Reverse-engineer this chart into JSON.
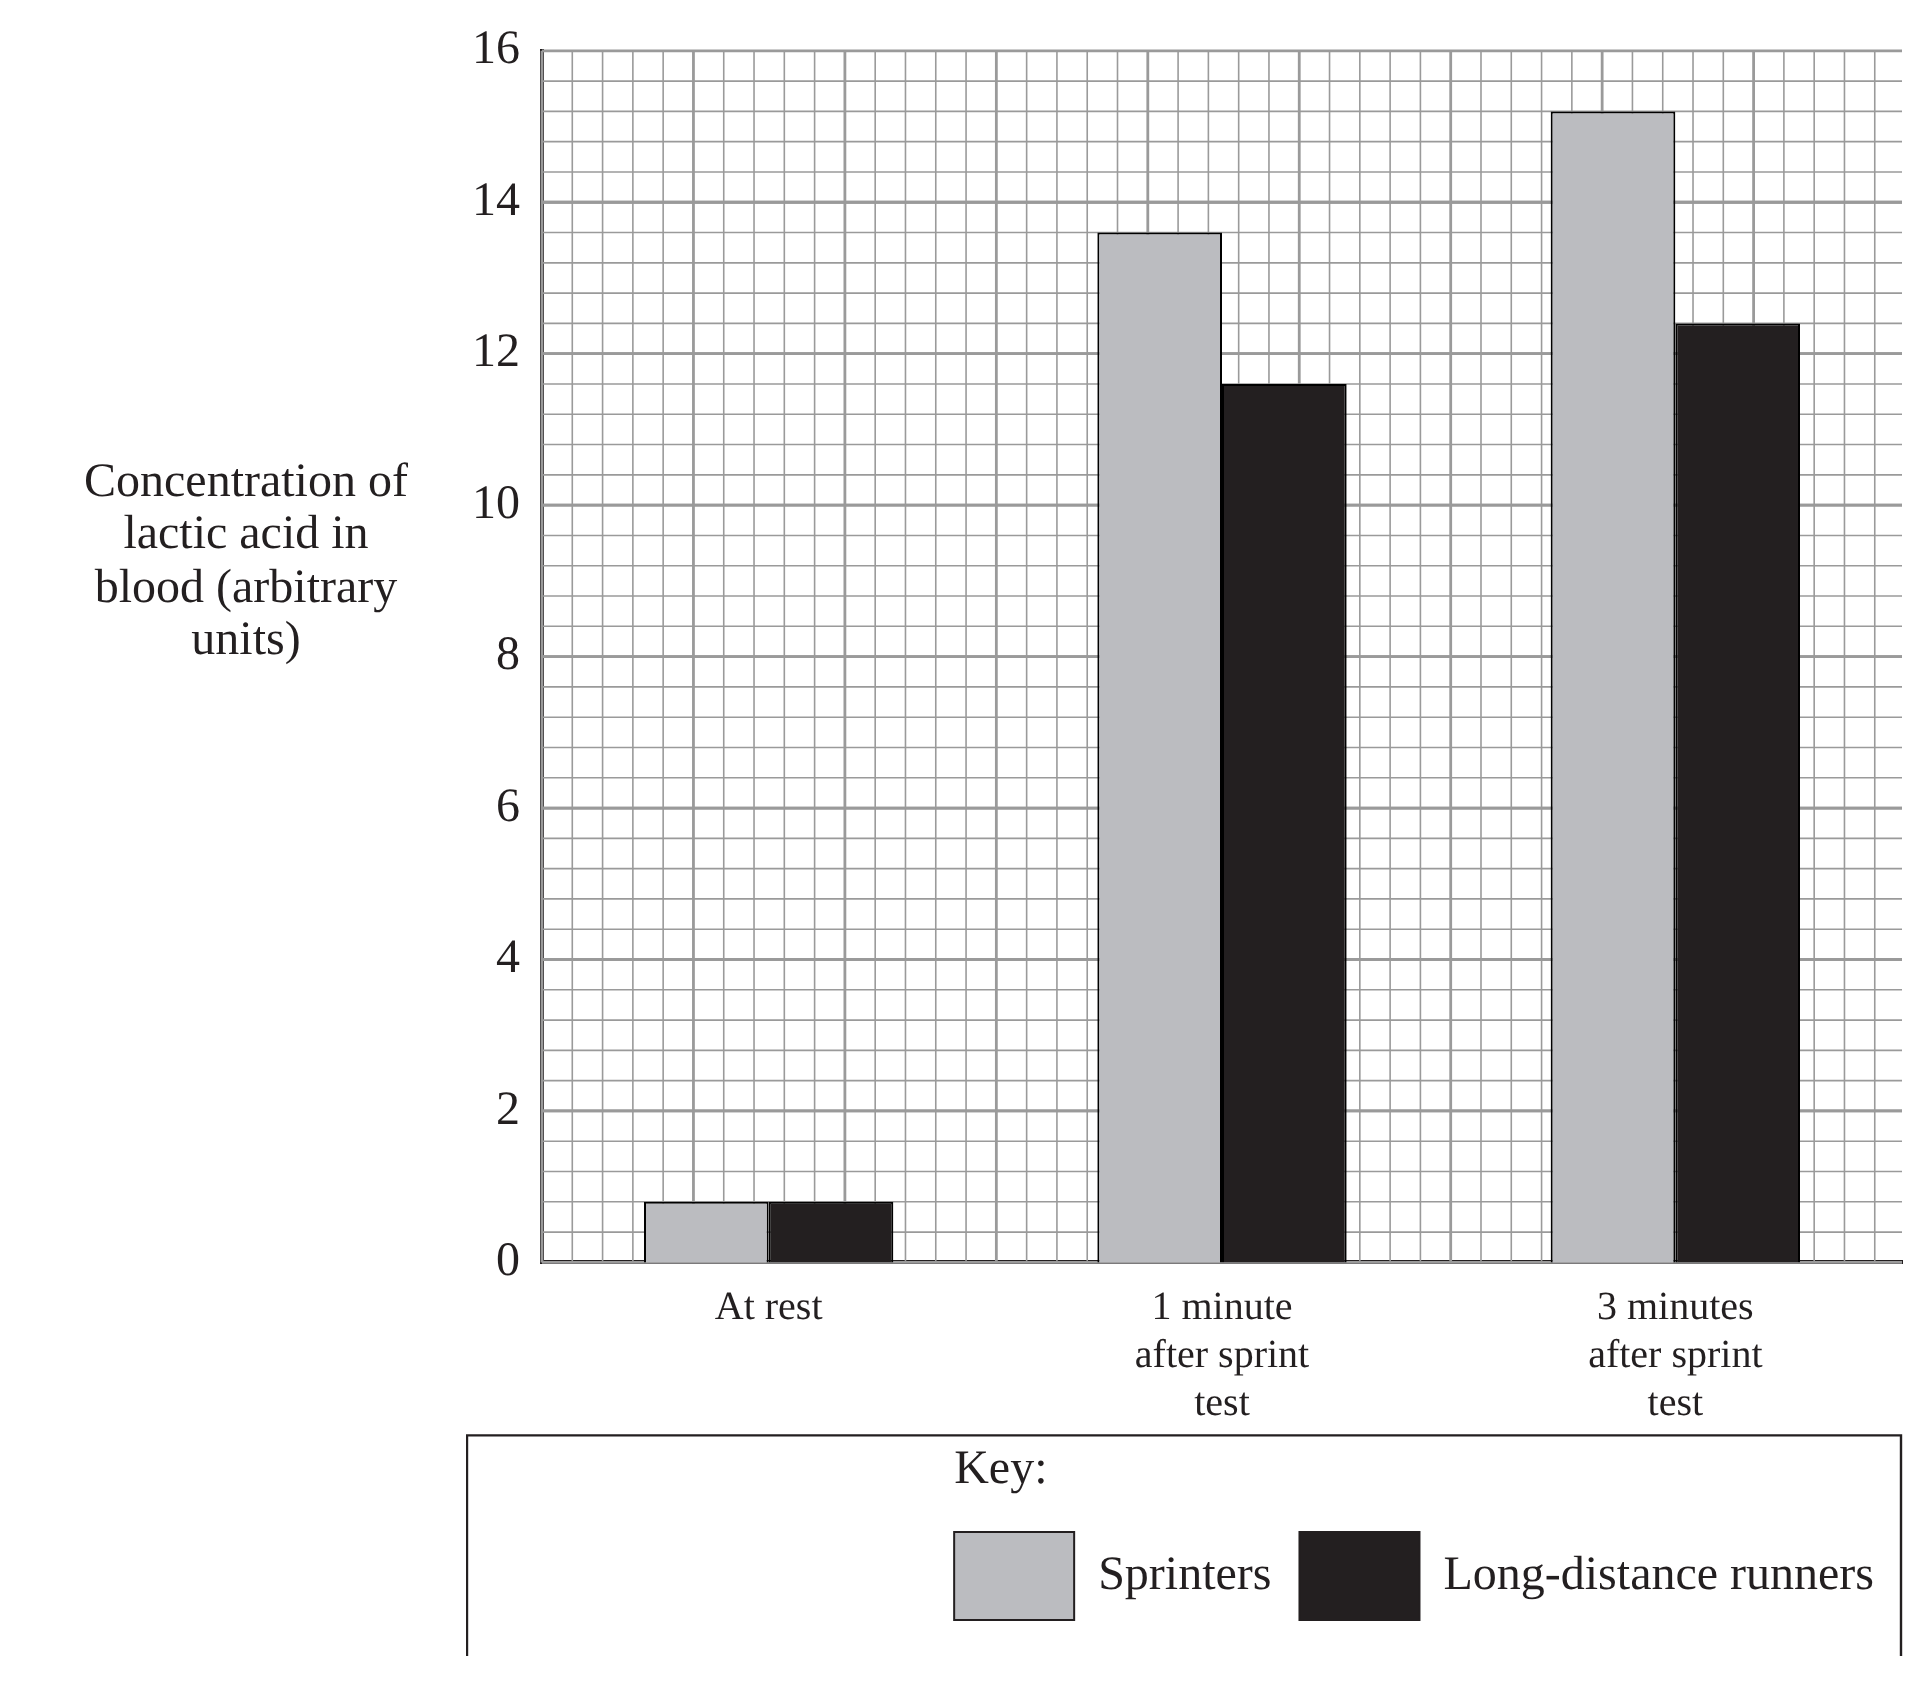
{
  "chart_data": {
    "type": "bar",
    "ylabel": "Concentration of lactic acid in blood (arbitrary units)",
    "legend_title": "Key:",
    "categories": [
      "At rest",
      "1 minute after sprint test",
      "3 minutes after sprint test"
    ],
    "series": [
      {
        "name": "Sprinters",
        "color": "#bbbcc0",
        "values": [
          0.8,
          13.6,
          15.2
        ]
      },
      {
        "name": "Long-distance runners",
        "color": "#231f20",
        "values": [
          0.8,
          11.6,
          12.4
        ]
      }
    ],
    "ylim": [
      0,
      16
    ],
    "yticks": [
      0,
      2,
      4,
      6,
      8,
      10,
      12,
      14,
      16
    ],
    "grid": true,
    "legend": "bottom"
  }
}
